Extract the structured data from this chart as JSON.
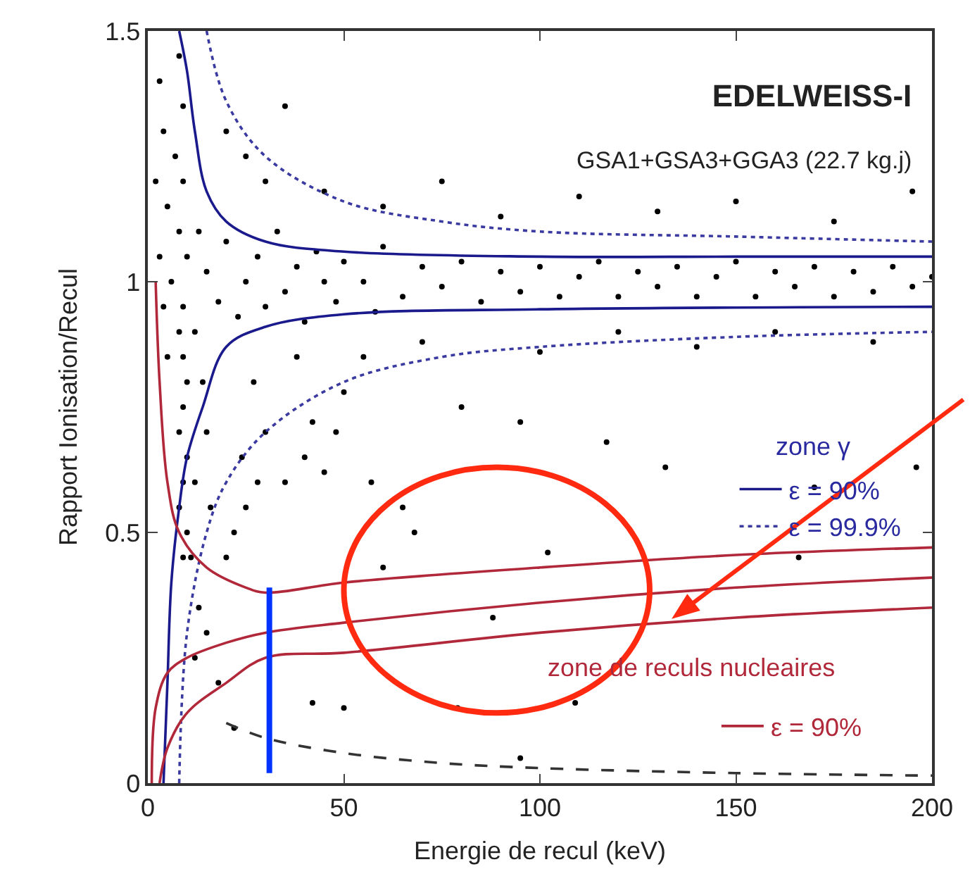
{
  "chart_data": {
    "type": "scatter",
    "title": "EDELWEISS-I",
    "subtitle": "GSA1+GSA3+GGA3 (22.7 kg.j)",
    "xlabel": "Energie de recul (keV)",
    "ylabel": "Rapport Ionisation/Recul",
    "annotations": [
      "zone γ",
      "zone de reculs nucleaires"
    ],
    "xlim": [
      0,
      200
    ],
    "xticks": [
      0,
      50,
      100,
      150,
      200
    ],
    "ylim": [
      0,
      1.5
    ],
    "yticks": [
      0,
      0.5,
      1,
      1.5
    ],
    "legend": "right",
    "series": [
      {
        "type": "scatter",
        "marker": "circle",
        "color": "#000000",
        "x": [
          8,
          9,
          7,
          9,
          8,
          10,
          9,
          8,
          9,
          10,
          9,
          8,
          10,
          9,
          8,
          10,
          9,
          3,
          4,
          2,
          5,
          3,
          4,
          5,
          6,
          12,
          13,
          14,
          15,
          12,
          16,
          11,
          13,
          15,
          12,
          18,
          20,
          22,
          25,
          24,
          28,
          30,
          27,
          35,
          40,
          45,
          42,
          38,
          50,
          48,
          57,
          65,
          68,
          60,
          88,
          102,
          80,
          95,
          117,
          132,
          170,
          196,
          42,
          50,
          79,
          109,
          95,
          22,
          166,
          15,
          18,
          20,
          23,
          25,
          28,
          30,
          33,
          35,
          38,
          40,
          43,
          45,
          48,
          50,
          55,
          58,
          60,
          65,
          70,
          75,
          80,
          85,
          90,
          95,
          100,
          105,
          110,
          115,
          120,
          125,
          130,
          135,
          140,
          145,
          150,
          155,
          160,
          165,
          170,
          175,
          180,
          185,
          190,
          195,
          200,
          30,
          45,
          60,
          75,
          90,
          110,
          130,
          150,
          175,
          195,
          20,
          35,
          25,
          55,
          70,
          100,
          120,
          140,
          160,
          185
        ],
        "values": [
          1.45,
          1.35,
          1.25,
          1.2,
          1.1,
          1.05,
          0.95,
          0.9,
          0.85,
          0.8,
          0.75,
          0.7,
          0.65,
          0.6,
          0.55,
          0.5,
          0.45,
          1.4,
          1.3,
          1.2,
          1.15,
          1.05,
          0.95,
          0.85,
          1.0,
          0.9,
          1.1,
          0.8,
          0.7,
          0.6,
          0.55,
          0.45,
          0.35,
          0.3,
          0.25,
          0.2,
          0.45,
          0.5,
          0.55,
          0.65,
          0.6,
          0.7,
          0.8,
          0.6,
          0.65,
          0.62,
          0.72,
          0.85,
          0.78,
          0.7,
          0.6,
          0.55,
          0.5,
          0.43,
          0.33,
          0.46,
          0.75,
          0.72,
          0.68,
          0.63,
          0.59,
          0.63,
          0.16,
          0.15,
          0.15,
          0.16,
          0.05,
          0.11,
          0.45,
          1.02,
          0.96,
          1.08,
          0.93,
          1.0,
          1.05,
          0.95,
          1.1,
          0.98,
          1.03,
          0.92,
          1.06,
          1.0,
          0.96,
          1.04,
          1.0,
          0.94,
          1.07,
          0.97,
          1.03,
          0.99,
          1.04,
          0.96,
          1.02,
          0.98,
          1.03,
          0.97,
          1.01,
          1.04,
          0.97,
          1.02,
          0.99,
          1.03,
          0.97,
          1.01,
          1.04,
          0.97,
          1.02,
          0.99,
          1.03,
          0.97,
          1.02,
          0.98,
          1.03,
          0.99,
          1.01,
          1.2,
          1.18,
          1.15,
          1.2,
          1.13,
          1.17,
          1.14,
          1.16,
          1.12,
          1.18,
          1.3,
          1.35,
          1.25,
          0.85,
          0.88,
          0.86,
          0.9,
          0.87,
          0.9,
          0.88
        ]
      },
      {
        "type": "line",
        "name": "ε = 90%",
        "color": "#1a1a8c",
        "line_style": "solid",
        "x": [
          8,
          10,
          12,
          15,
          20,
          30,
          50,
          100,
          150,
          200
        ],
        "values": [
          1.5,
          1.42,
          1.3,
          1.18,
          1.12,
          1.08,
          1.06,
          1.05,
          1.05,
          1.05
        ]
      },
      {
        "type": "line",
        "color": "#1a1a8c",
        "line_style": "solid",
        "x": [
          4,
          5,
          6,
          8,
          10,
          14,
          20,
          30,
          50,
          100,
          200
        ],
        "values": [
          0,
          0.2,
          0.4,
          0.55,
          0.65,
          0.75,
          0.87,
          0.91,
          0.935,
          0.945,
          0.95
        ]
      },
      {
        "type": "line",
        "name": "ε = 99.9%",
        "color": "#3a3aa0",
        "line_style": "dotted",
        "x": [
          15,
          20,
          30,
          50,
          75,
          100,
          150,
          200
        ],
        "values": [
          1.5,
          1.36,
          1.25,
          1.16,
          1.12,
          1.1,
          1.09,
          1.08
        ]
      },
      {
        "type": "line",
        "color": "#3a3aa0",
        "line_style": "dotted",
        "x": [
          8,
          10,
          15,
          20,
          30,
          50,
          75,
          100,
          150,
          200
        ],
        "values": [
          0,
          0.3,
          0.5,
          0.6,
          0.7,
          0.8,
          0.85,
          0.87,
          0.89,
          0.9
        ]
      },
      {
        "type": "line",
        "name": "ε = 90%",
        "color": "#b0283a",
        "line_style": "solid",
        "x": [
          2,
          3,
          5,
          8,
          15,
          25,
          30,
          50,
          100,
          150,
          200
        ],
        "values": [
          1.0,
          0.8,
          0.6,
          0.5,
          0.43,
          0.39,
          0.38,
          0.4,
          0.43,
          0.455,
          0.47
        ]
      },
      {
        "type": "line",
        "color": "#b0283a",
        "line_style": "solid",
        "x": [
          1,
          2,
          5,
          10,
          20,
          30,
          50,
          100,
          150,
          200
        ],
        "values": [
          0,
          0.15,
          0.22,
          0.25,
          0.28,
          0.3,
          0.32,
          0.36,
          0.39,
          0.41
        ]
      },
      {
        "type": "line",
        "color": "#b0283a",
        "line_style": "solid",
        "x": [
          3,
          5,
          10,
          20,
          30,
          50,
          100,
          150,
          200
        ],
        "values": [
          0,
          0.07,
          0.14,
          0.2,
          0.25,
          0.26,
          0.3,
          0.33,
          0.35
        ]
      },
      {
        "type": "line",
        "color": "#333333",
        "line_style": "dashed",
        "x": [
          20,
          30,
          50,
          75,
          100,
          150,
          200
        ],
        "values": [
          0.12,
          0.09,
          0.06,
          0.04,
          0.03,
          0.02,
          0.015
        ]
      },
      {
        "type": "line",
        "color": "#0033ff",
        "line_style": "solid",
        "x": [
          31,
          31
        ],
        "values": [
          0.02,
          0.39
        ]
      }
    ]
  }
}
